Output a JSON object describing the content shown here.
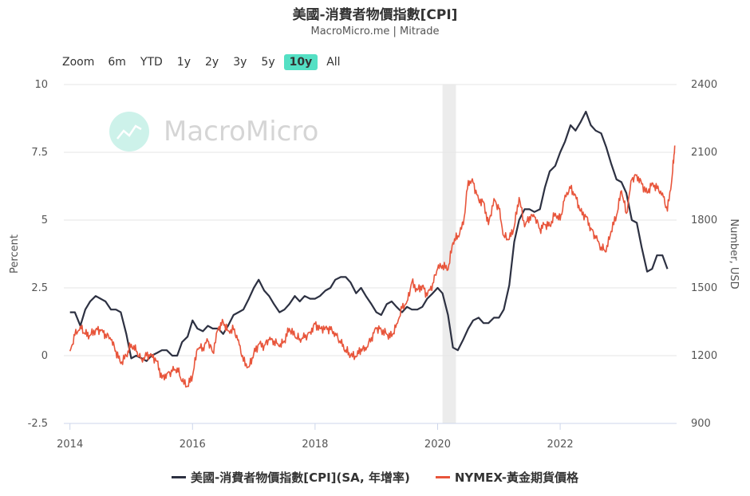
{
  "title": "美國-消費者物價指數[CPI]",
  "subtitle": "MacroMicro.me | Mitrade",
  "watermark": "MacroMicro",
  "zoom": {
    "label": "Zoom",
    "buttons": [
      "6m",
      "YTD",
      "1y",
      "2y",
      "3y",
      "5y",
      "10y",
      "All"
    ],
    "active": "10y"
  },
  "legend": [
    {
      "label": "美國-消費者物價指數[CPI](SA, 年增率)",
      "color": "#2d3142"
    },
    {
      "label": "NYMEX-黃金期貨價格",
      "color": "#e8553b"
    }
  ],
  "chart_data": {
    "type": "line",
    "xlim": [
      2013.9,
      2023.9
    ],
    "x_ticks": [
      "2014",
      "2016",
      "2018",
      "2020",
      "2022"
    ],
    "x_tick_values": [
      2014,
      2016,
      2018,
      2020,
      2022
    ],
    "left_axis": {
      "label": "Percent",
      "range": [
        -2.5,
        10
      ],
      "ticks": [
        "-2.5",
        "0",
        "2.5",
        "5",
        "7.5",
        "10"
      ],
      "tick_values": [
        -2.5,
        0,
        2.5,
        5,
        7.5,
        10
      ]
    },
    "right_axis": {
      "label": "Number, USD",
      "range": [
        900,
        2400
      ],
      "ticks": [
        "900",
        "1200",
        "1500",
        "1800",
        "2100",
        "2400"
      ],
      "tick_values": [
        900,
        1200,
        1500,
        1800,
        2100,
        2400
      ]
    },
    "recession_band": [
      2020.08,
      2020.3
    ],
    "series": [
      {
        "name": "美國-消費者物價指數[CPI](SA, 年增率)",
        "axis": "left",
        "color": "#2d3142",
        "points": [
          [
            2014.0,
            1.6
          ],
          [
            2014.08,
            1.6
          ],
          [
            2014.17,
            1.1
          ],
          [
            2014.25,
            1.7
          ],
          [
            2014.33,
            2.0
          ],
          [
            2014.42,
            2.2
          ],
          [
            2014.5,
            2.1
          ],
          [
            2014.58,
            2.0
          ],
          [
            2014.67,
            1.7
          ],
          [
            2014.75,
            1.7
          ],
          [
            2014.83,
            1.6
          ],
          [
            2014.92,
            0.8
          ],
          [
            2015.0,
            -0.1
          ],
          [
            2015.08,
            0.0
          ],
          [
            2015.17,
            -0.1
          ],
          [
            2015.25,
            -0.2
          ],
          [
            2015.33,
            0.0
          ],
          [
            2015.42,
            0.1
          ],
          [
            2015.5,
            0.2
          ],
          [
            2015.58,
            0.2
          ],
          [
            2015.67,
            0.0
          ],
          [
            2015.75,
            0.0
          ],
          [
            2015.83,
            0.5
          ],
          [
            2015.92,
            0.7
          ],
          [
            2016.0,
            1.3
          ],
          [
            2016.08,
            1.0
          ],
          [
            2016.17,
            0.9
          ],
          [
            2016.25,
            1.1
          ],
          [
            2016.33,
            1.0
          ],
          [
            2016.42,
            1.0
          ],
          [
            2016.5,
            0.8
          ],
          [
            2016.58,
            1.1
          ],
          [
            2016.67,
            1.5
          ],
          [
            2016.75,
            1.6
          ],
          [
            2016.83,
            1.7
          ],
          [
            2016.92,
            2.1
          ],
          [
            2017.0,
            2.5
          ],
          [
            2017.08,
            2.8
          ],
          [
            2017.17,
            2.4
          ],
          [
            2017.25,
            2.2
          ],
          [
            2017.33,
            1.9
          ],
          [
            2017.42,
            1.6
          ],
          [
            2017.5,
            1.7
          ],
          [
            2017.58,
            1.9
          ],
          [
            2017.67,
            2.2
          ],
          [
            2017.75,
            2.0
          ],
          [
            2017.83,
            2.2
          ],
          [
            2017.92,
            2.1
          ],
          [
            2018.0,
            2.1
          ],
          [
            2018.08,
            2.2
          ],
          [
            2018.17,
            2.4
          ],
          [
            2018.25,
            2.5
          ],
          [
            2018.33,
            2.8
          ],
          [
            2018.42,
            2.9
          ],
          [
            2018.5,
            2.9
          ],
          [
            2018.58,
            2.7
          ],
          [
            2018.67,
            2.3
          ],
          [
            2018.75,
            2.5
          ],
          [
            2018.83,
            2.2
          ],
          [
            2018.92,
            1.9
          ],
          [
            2019.0,
            1.6
          ],
          [
            2019.08,
            1.5
          ],
          [
            2019.17,
            1.9
          ],
          [
            2019.25,
            2.0
          ],
          [
            2019.33,
            1.8
          ],
          [
            2019.42,
            1.6
          ],
          [
            2019.5,
            1.8
          ],
          [
            2019.58,
            1.7
          ],
          [
            2019.67,
            1.7
          ],
          [
            2019.75,
            1.8
          ],
          [
            2019.83,
            2.1
          ],
          [
            2019.92,
            2.3
          ],
          [
            2020.0,
            2.5
          ],
          [
            2020.08,
            2.3
          ],
          [
            2020.17,
            1.5
          ],
          [
            2020.25,
            0.3
          ],
          [
            2020.33,
            0.2
          ],
          [
            2020.42,
            0.6
          ],
          [
            2020.5,
            1.0
          ],
          [
            2020.58,
            1.3
          ],
          [
            2020.67,
            1.4
          ],
          [
            2020.75,
            1.2
          ],
          [
            2020.83,
            1.2
          ],
          [
            2020.92,
            1.4
          ],
          [
            2021.0,
            1.4
          ],
          [
            2021.08,
            1.7
          ],
          [
            2021.17,
            2.6
          ],
          [
            2021.25,
            4.2
          ],
          [
            2021.33,
            5.0
          ],
          [
            2021.42,
            5.4
          ],
          [
            2021.5,
            5.4
          ],
          [
            2021.58,
            5.3
          ],
          [
            2021.67,
            5.4
          ],
          [
            2021.75,
            6.2
          ],
          [
            2021.83,
            6.8
          ],
          [
            2021.92,
            7.0
          ],
          [
            2022.0,
            7.5
          ],
          [
            2022.08,
            7.9
          ],
          [
            2022.17,
            8.5
          ],
          [
            2022.25,
            8.3
          ],
          [
            2022.33,
            8.6
          ],
          [
            2022.42,
            9.0
          ],
          [
            2022.5,
            8.5
          ],
          [
            2022.58,
            8.3
          ],
          [
            2022.67,
            8.2
          ],
          [
            2022.75,
            7.7
          ],
          [
            2022.83,
            7.1
          ],
          [
            2022.92,
            6.5
          ],
          [
            2023.0,
            6.4
          ],
          [
            2023.08,
            6.0
          ],
          [
            2023.17,
            5.0
          ],
          [
            2023.25,
            4.9
          ],
          [
            2023.33,
            4.0
          ],
          [
            2023.42,
            3.1
          ],
          [
            2023.5,
            3.2
          ],
          [
            2023.58,
            3.7
          ],
          [
            2023.67,
            3.7
          ],
          [
            2023.75,
            3.2
          ]
        ]
      },
      {
        "name": "NYMEX-黃金期貨價格",
        "axis": "right",
        "color": "#e8553b",
        "points": [
          [
            2014.0,
            1220
          ],
          [
            2014.08,
            1290
          ],
          [
            2014.17,
            1330
          ],
          [
            2014.25,
            1295
          ],
          [
            2014.33,
            1290
          ],
          [
            2014.42,
            1315
          ],
          [
            2014.5,
            1310
          ],
          [
            2014.58,
            1295
          ],
          [
            2014.67,
            1270
          ],
          [
            2014.75,
            1220
          ],
          [
            2014.83,
            1165
          ],
          [
            2014.92,
            1200
          ],
          [
            2015.0,
            1250
          ],
          [
            2015.08,
            1220
          ],
          [
            2015.17,
            1185
          ],
          [
            2015.25,
            1200
          ],
          [
            2015.33,
            1205
          ],
          [
            2015.42,
            1175
          ],
          [
            2015.5,
            1100
          ],
          [
            2015.58,
            1120
          ],
          [
            2015.67,
            1130
          ],
          [
            2015.75,
            1145
          ],
          [
            2015.83,
            1085
          ],
          [
            2015.92,
            1065
          ],
          [
            2016.0,
            1110
          ],
          [
            2016.08,
            1230
          ],
          [
            2016.17,
            1235
          ],
          [
            2016.25,
            1265
          ],
          [
            2016.33,
            1215
          ],
          [
            2016.42,
            1320
          ],
          [
            2016.5,
            1350
          ],
          [
            2016.58,
            1310
          ],
          [
            2016.67,
            1315
          ],
          [
            2016.75,
            1270
          ],
          [
            2016.83,
            1175
          ],
          [
            2016.92,
            1150
          ],
          [
            2017.0,
            1210
          ],
          [
            2017.08,
            1250
          ],
          [
            2017.17,
            1245
          ],
          [
            2017.25,
            1270
          ],
          [
            2017.33,
            1265
          ],
          [
            2017.42,
            1240
          ],
          [
            2017.5,
            1265
          ],
          [
            2017.58,
            1320
          ],
          [
            2017.67,
            1285
          ],
          [
            2017.75,
            1275
          ],
          [
            2017.83,
            1280
          ],
          [
            2017.92,
            1305
          ],
          [
            2018.0,
            1340
          ],
          [
            2018.08,
            1320
          ],
          [
            2018.17,
            1325
          ],
          [
            2018.25,
            1315
          ],
          [
            2018.33,
            1300
          ],
          [
            2018.42,
            1255
          ],
          [
            2018.5,
            1225
          ],
          [
            2018.58,
            1200
          ],
          [
            2018.67,
            1195
          ],
          [
            2018.75,
            1230
          ],
          [
            2018.83,
            1225
          ],
          [
            2018.92,
            1280
          ],
          [
            2019.0,
            1320
          ],
          [
            2019.08,
            1315
          ],
          [
            2019.17,
            1295
          ],
          [
            2019.25,
            1285
          ],
          [
            2019.33,
            1340
          ],
          [
            2019.42,
            1410
          ],
          [
            2019.5,
            1440
          ],
          [
            2019.58,
            1525
          ],
          [
            2019.67,
            1490
          ],
          [
            2019.75,
            1510
          ],
          [
            2019.83,
            1465
          ],
          [
            2019.92,
            1520
          ],
          [
            2020.0,
            1585
          ],
          [
            2020.08,
            1600
          ],
          [
            2020.17,
            1580
          ],
          [
            2020.25,
            1700
          ],
          [
            2020.33,
            1730
          ],
          [
            2020.42,
            1780
          ],
          [
            2020.5,
            1975
          ],
          [
            2020.58,
            1965
          ],
          [
            2020.67,
            1890
          ],
          [
            2020.75,
            1880
          ],
          [
            2020.83,
            1780
          ],
          [
            2020.92,
            1895
          ],
          [
            2021.0,
            1850
          ],
          [
            2021.08,
            1730
          ],
          [
            2021.17,
            1715
          ],
          [
            2021.25,
            1770
          ],
          [
            2021.33,
            1900
          ],
          [
            2021.42,
            1770
          ],
          [
            2021.5,
            1815
          ],
          [
            2021.58,
            1815
          ],
          [
            2021.67,
            1760
          ],
          [
            2021.75,
            1780
          ],
          [
            2021.83,
            1775
          ],
          [
            2021.92,
            1830
          ],
          [
            2022.0,
            1800
          ],
          [
            2022.08,
            1910
          ],
          [
            2022.17,
            1940
          ],
          [
            2022.25,
            1910
          ],
          [
            2022.33,
            1840
          ],
          [
            2022.42,
            1815
          ],
          [
            2022.5,
            1765
          ],
          [
            2022.58,
            1720
          ],
          [
            2022.67,
            1680
          ],
          [
            2022.75,
            1660
          ],
          [
            2022.83,
            1750
          ],
          [
            2022.92,
            1820
          ],
          [
            2023.0,
            1930
          ],
          [
            2023.08,
            1830
          ],
          [
            2023.17,
            1980
          ],
          [
            2023.25,
            2000
          ],
          [
            2023.33,
            1960
          ],
          [
            2023.42,
            1920
          ],
          [
            2023.5,
            1965
          ],
          [
            2023.58,
            1940
          ],
          [
            2023.67,
            1920
          ],
          [
            2023.75,
            1840
          ],
          [
            2023.83,
            2000
          ],
          [
            2023.87,
            2130
          ]
        ]
      }
    ]
  }
}
